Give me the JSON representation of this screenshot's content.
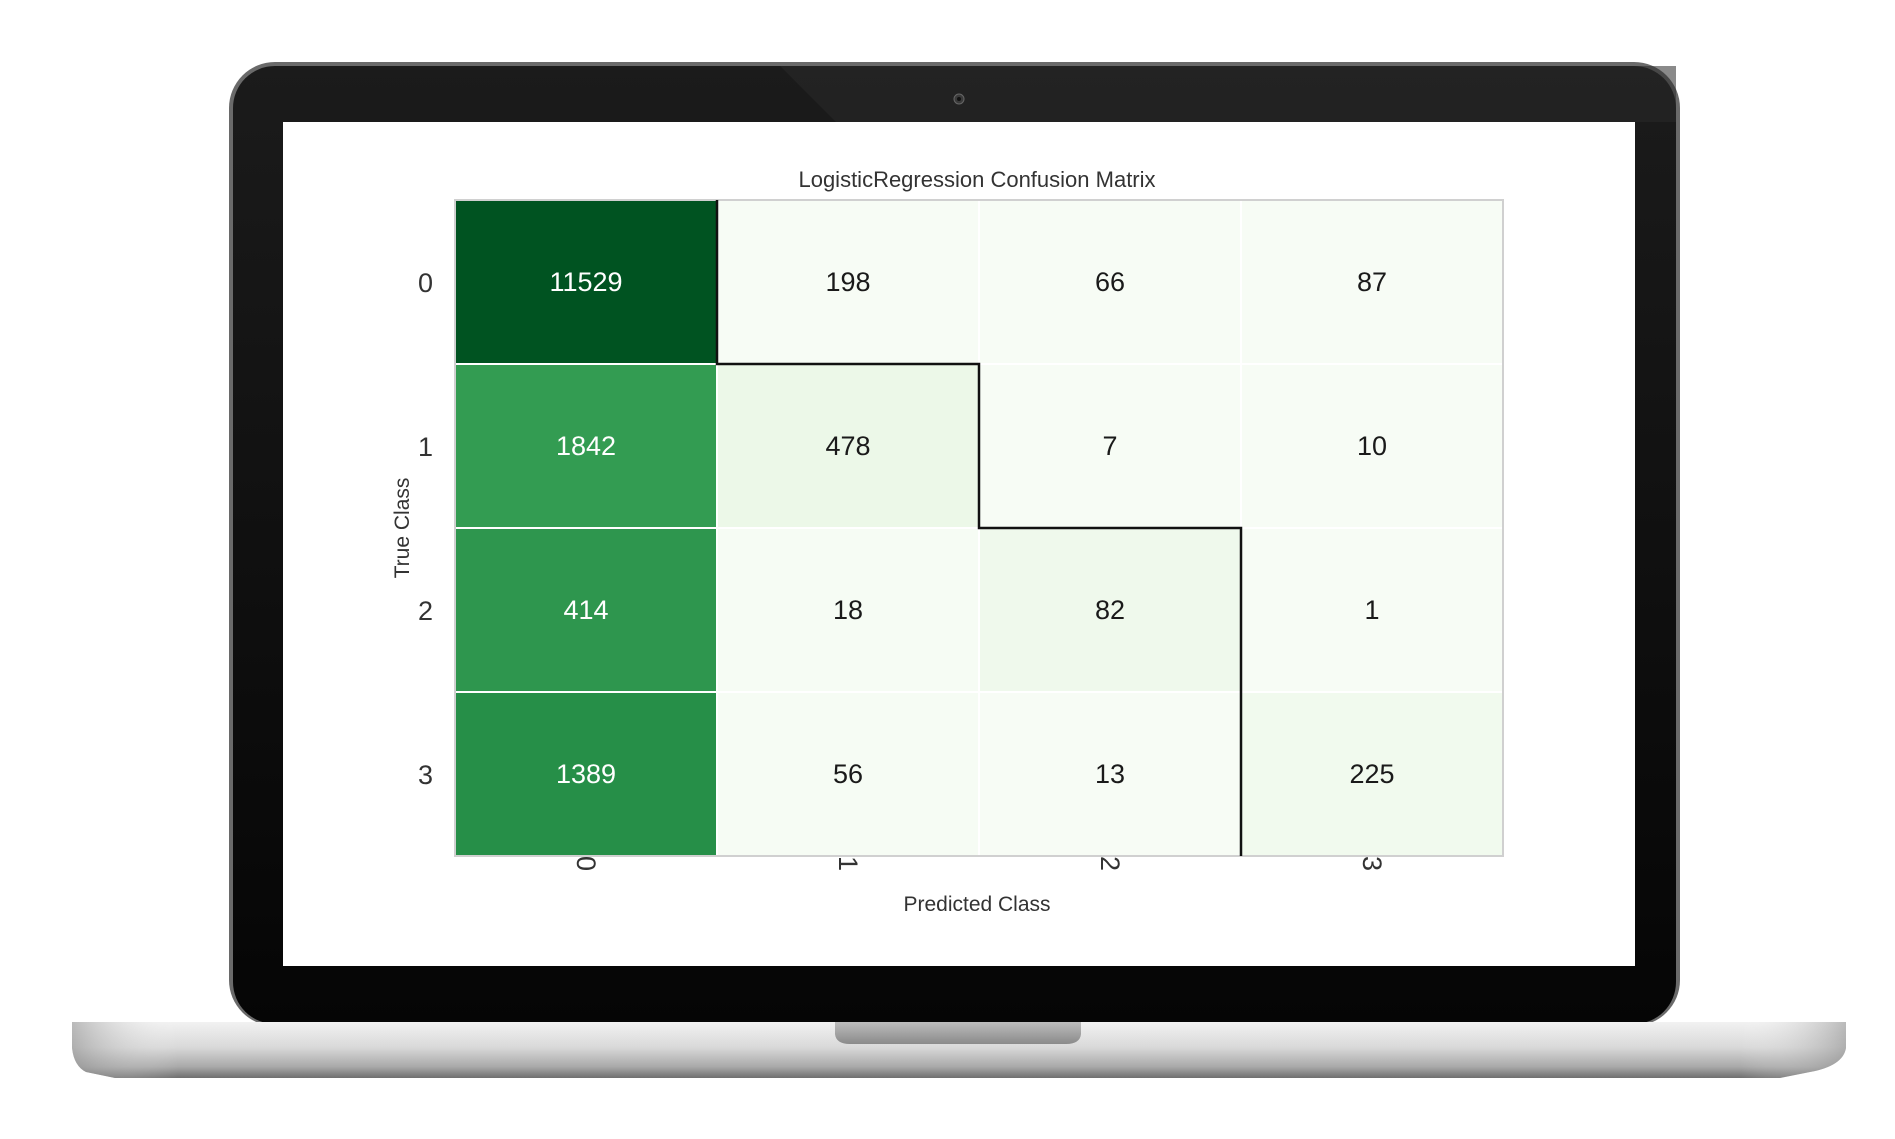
{
  "chart_data": {
    "type": "heatmap",
    "title": "LogisticRegression Confusion Matrix",
    "xlabel": "Predicted Class",
    "ylabel": "True Class",
    "x_categories": [
      "0",
      "1",
      "2",
      "3"
    ],
    "y_categories": [
      "0",
      "1",
      "2",
      "3"
    ],
    "values": [
      [
        11529,
        198,
        66,
        87
      ],
      [
        1842,
        478,
        7,
        10
      ],
      [
        414,
        18,
        82,
        1
      ],
      [
        1389,
        56,
        13,
        225
      ]
    ],
    "colormap": "Greens",
    "grid": true,
    "diagonal_outline": true
  },
  "colors": {
    "laptop_bezel": "#0b0b0b",
    "screen": "#ffffff",
    "cell_high": "#00441b",
    "cell_low": "#f7fcf5",
    "text_dark": "#1a1a1a",
    "text_light": "#ffffff"
  }
}
